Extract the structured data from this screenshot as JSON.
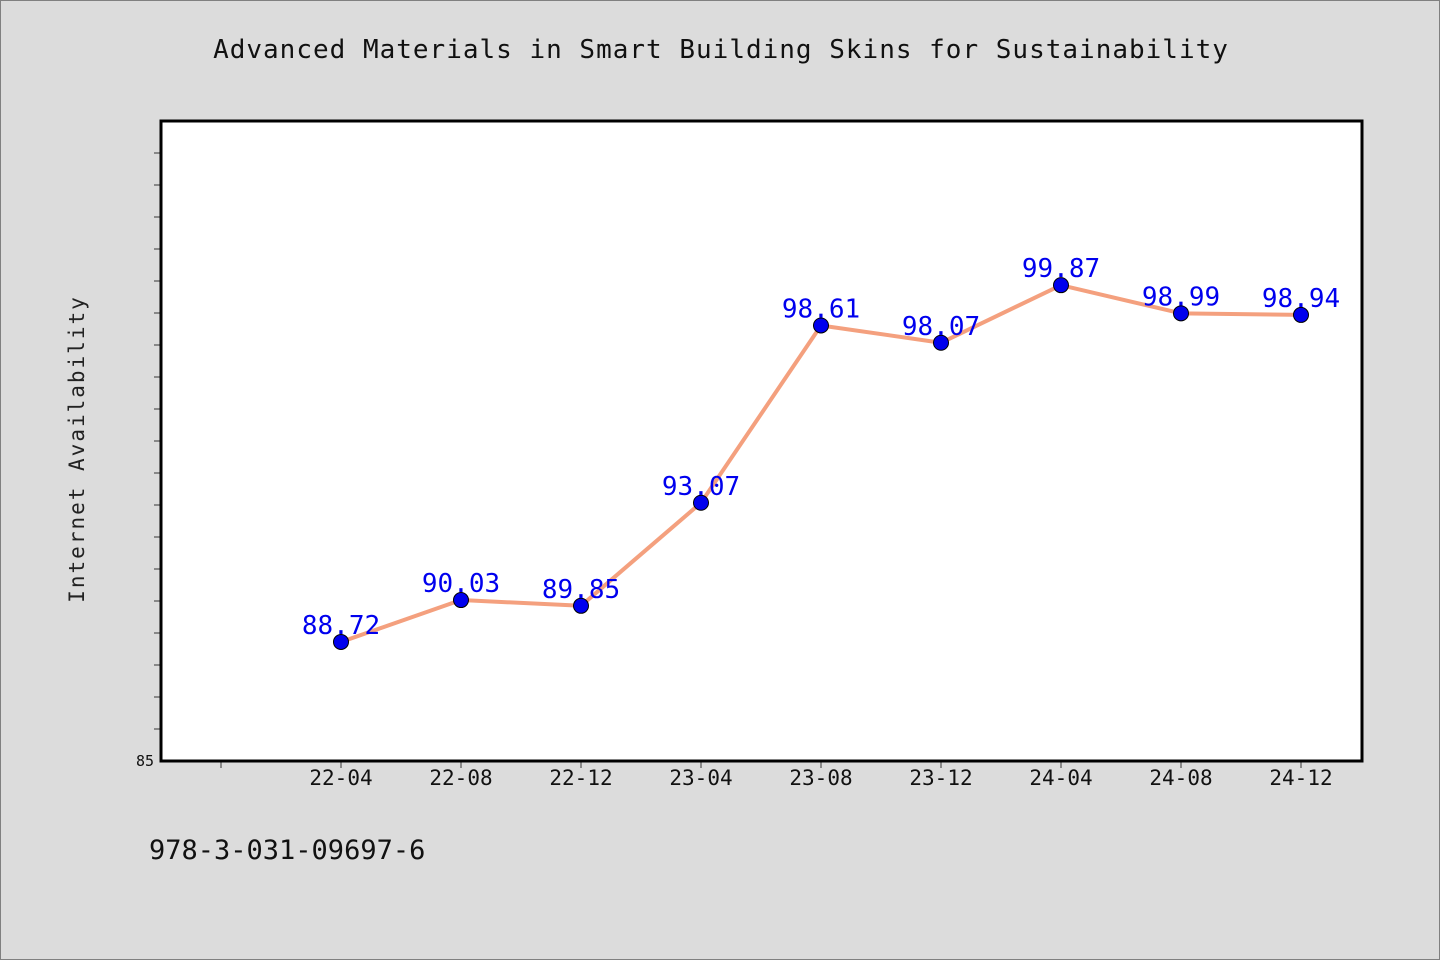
{
  "chart_data": {
    "type": "line",
    "title": "Advanced Materials in Smart Building Skins for Sustainability",
    "xlabel": "",
    "ylabel": "Internet Availability",
    "categories": [
      "22-04",
      "22-08",
      "22-12",
      "23-04",
      "23-08",
      "23-12",
      "24-04",
      "24-08",
      "24-12"
    ],
    "series": [
      {
        "values": [
          88.72,
          90.03,
          89.85,
          93.07,
          98.61,
          98.07,
          99.87,
          98.99,
          98.94
        ],
        "value_labels": [
          "88.72",
          "90.03",
          "89.85",
          "93.07",
          "98.61",
          "98.07",
          "99.87",
          "98.99",
          "98.94"
        ]
      }
    ],
    "ylim": [
      85,
      105
    ],
    "y_tick_labels": [
      "85"
    ],
    "grid": false,
    "legend": "none",
    "colors": {
      "line": "#f4a07e",
      "marker": "#0000ee",
      "data_label": "#0000ee",
      "plot_background": "#ffffff",
      "figure_background": "#dcdcdc"
    }
  },
  "footer": {
    "identifier": "978-3-031-09697-6"
  }
}
